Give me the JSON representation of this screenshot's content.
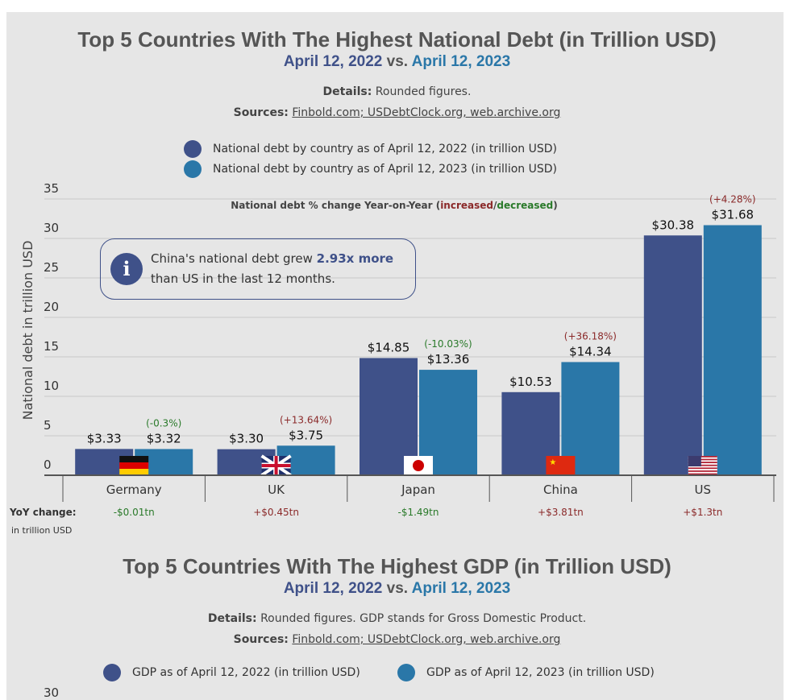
{
  "chart_data": [
    {
      "type": "bar",
      "title": "Top 5 Countries With The Highest National Debt (in Trillion USD)",
      "subtitle": {
        "date_2022": "April 12, 2022",
        "vs": "vs.",
        "date_2023": "April 12, 2023"
      },
      "details_label": "Details:",
      "details": "Rounded figures.",
      "sources_label": "Sources:",
      "sources": "Finbold.com; USDebtClock.org, web.archive.org",
      "ylabel": "National debt in trillion USD",
      "ylim": [
        0,
        35
      ],
      "yticks": [
        "0",
        "5",
        "10",
        "15",
        "20",
        "25",
        "30",
        "35"
      ],
      "grid": true,
      "legend": [
        "National debt by country as of April 12, 2022 (in trillion USD)",
        "National debt by country as of April 12, 2023 (in trillion USD)"
      ],
      "change_header": {
        "a": "National debt % change Year-on-Year (",
        "inc": "increased",
        "sep": "/",
        "dec": "decreased",
        "b": ")"
      },
      "categories": [
        "Germany",
        "UK",
        "Japan",
        "China",
        "US"
      ],
      "flags": [
        "germany-flag",
        "uk-flag",
        "japan-flag",
        "china-flag",
        "us-flag"
      ],
      "series": [
        {
          "name": "National debt by country as of April 12, 2022 (in trillion USD)",
          "values": [
            3.33,
            3.3,
            14.85,
            10.53,
            30.38
          ],
          "labels": [
            "$3.33",
            "$3.30",
            "$14.85",
            "$10.53",
            "$30.38"
          ],
          "color": "#3f5189"
        },
        {
          "name": "National debt by country as of April 12, 2023 (in trillion USD)",
          "values": [
            3.32,
            3.75,
            13.36,
            14.34,
            31.68
          ],
          "labels": [
            "$3.32",
            "$3.75",
            "$13.36",
            "$14.34",
            "$31.68"
          ],
          "color": "#2a77a8"
        }
      ],
      "pct_change": [
        "(-0.3%)",
        "(+13.64%)",
        "(-10.03%)",
        "(+36.18%)",
        "(+4.28%)"
      ],
      "yoy_label": "YoY change:",
      "yoy_unit": "in trillion USD",
      "yoy": [
        "-$0.01tn",
        "+$0.45tn",
        "-$1.49tn",
        "+$3.81tn",
        "+$1.3tn"
      ],
      "annotation": {
        "a": "China's national debt grew ",
        "b": "2.93x more",
        "c": "than US in the last 12 months."
      },
      "colors": {
        "increase": "#8b2a2a",
        "decrease": "#2a7a2a"
      }
    },
    {
      "type": "bar",
      "title": "Top 5 Countries With The Highest GDP (in Trillion USD)",
      "subtitle": {
        "date_2022": "April 12, 2022",
        "vs": "vs.",
        "date_2023": "April 12, 2023"
      },
      "details_label": "Details:",
      "details": "Rounded figures. GDP stands for Gross Domestic Product.",
      "sources_label": "Sources:",
      "sources": "Finbold.com; USDebtClock.org, web.archive.org",
      "legend": [
        "GDP as of April 12, 2022 (in trillion USD)",
        "GDP as of April 12, 2023 (in trillion USD)"
      ],
      "yticks": [
        "30"
      ]
    }
  ]
}
